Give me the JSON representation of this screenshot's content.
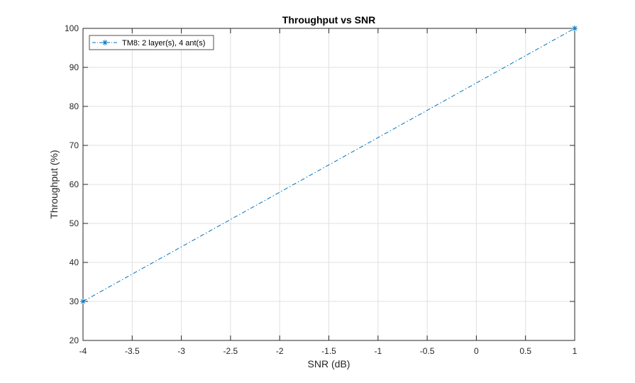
{
  "chart_data": {
    "type": "line",
    "title": "Throughput vs SNR",
    "xlabel": "SNR (dB)",
    "ylabel": "Throughput (%)",
    "xlim": [
      -4,
      1
    ],
    "ylim": [
      20,
      100
    ],
    "xticks": [
      -4,
      -3.5,
      -3,
      -2.5,
      -2,
      -1.5,
      -1,
      -0.5,
      0,
      0.5,
      1
    ],
    "xtick_labels": [
      "-4",
      "-3.5",
      "-3",
      "-2.5",
      "-2",
      "-1.5",
      "-1",
      "-0.5",
      "0",
      "0.5",
      "1"
    ],
    "yticks": [
      20,
      30,
      40,
      50,
      60,
      70,
      80,
      90,
      100
    ],
    "ytick_labels": [
      "20",
      "30",
      "40",
      "50",
      "60",
      "70",
      "80",
      "90",
      "100"
    ],
    "grid": true,
    "legend_position": "top-left",
    "series": [
      {
        "name": "TM8: 2 layer(s), 4 ant(s)",
        "color": "#0072bd",
        "line_style": "dash-dot",
        "marker": "asterisk",
        "x": [
          -4,
          1
        ],
        "y": [
          30,
          100
        ]
      }
    ]
  }
}
